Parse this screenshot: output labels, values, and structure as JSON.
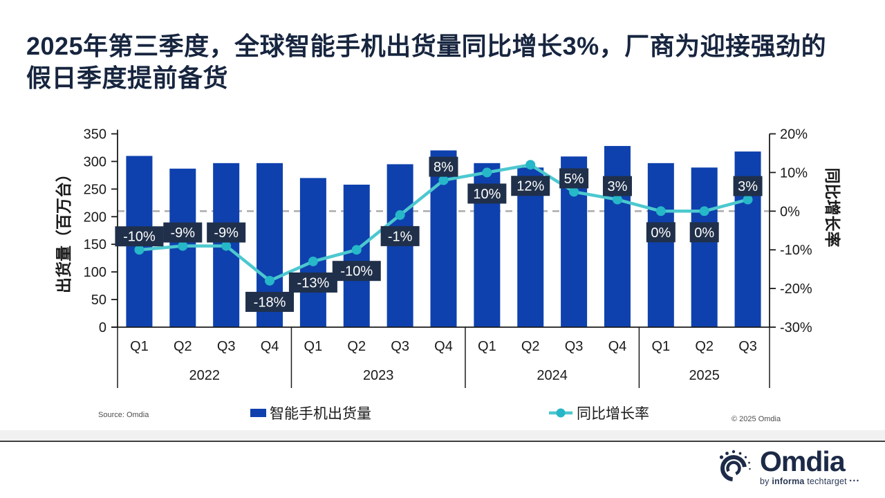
{
  "title": {
    "line1": "2025年第三季度，全球智能手机出货量同比增长3%，厂商为迎接强劲的",
    "line2": "假日季度提前备货"
  },
  "colors": {
    "bar": "#0e41ae",
    "line": "#4cc8cf",
    "marker": "#26b7c8",
    "label_box": "#20304a",
    "label_text": "#ffffff",
    "axis_text": "#1a1a1a",
    "axis_line": "#1a1a1a",
    "dashed_zero": "#ababab",
    "title_navy": "#17253f"
  },
  "chart_data": {
    "type": "bar+line",
    "categories": [
      "Q1",
      "Q2",
      "Q3",
      "Q4",
      "Q1",
      "Q2",
      "Q3",
      "Q4",
      "Q1",
      "Q2",
      "Q3",
      "Q4",
      "Q1",
      "Q2",
      "Q3"
    ],
    "groups": [
      {
        "year": "2022",
        "count": 4
      },
      {
        "year": "2023",
        "count": 4
      },
      {
        "year": "2024",
        "count": 4
      },
      {
        "year": "2025",
        "count": 3
      }
    ],
    "series": [
      {
        "name": "智能手机出货量",
        "type": "bar",
        "axis": "left",
        "values": [
          310,
          287,
          297,
          297,
          270,
          258,
          295,
          320,
          297,
          289,
          309,
          328,
          297,
          289,
          318
        ]
      },
      {
        "name": "同比增长率",
        "type": "line",
        "axis": "right",
        "values_pct": [
          -10,
          -9,
          -9,
          -18,
          -13,
          -10,
          -1,
          8,
          10,
          12,
          5,
          3,
          0,
          0,
          3
        ],
        "labels": [
          "-10%",
          "-9%",
          "-9%",
          "-18%",
          "-13%",
          "-10%",
          "-1%",
          "8%",
          "10%",
          "12%",
          "5%",
          "3%",
          "0%",
          "0%",
          "3%"
        ],
        "label_side": [
          "above",
          "above",
          "above",
          "below",
          "below",
          "below",
          "below",
          "above",
          "below",
          "below",
          "above",
          "above",
          "below",
          "below",
          "above"
        ]
      }
    ],
    "left_axis": {
      "title": "出货量（百万台）",
      "ticks": [
        0,
        50,
        100,
        150,
        200,
        250,
        300,
        350
      ],
      "range": [
        0,
        350
      ]
    },
    "right_axis": {
      "title": "同比增长率",
      "ticks": [
        "20%",
        "10%",
        "0%",
        "-10%",
        "-20%",
        "-30%"
      ],
      "tick_values": [
        20,
        10,
        0,
        -10,
        -20,
        -30
      ],
      "range": [
        -30,
        20
      ]
    },
    "zero_line": true,
    "grid": false,
    "legend_position": "bottom"
  },
  "legend": {
    "items": [
      {
        "label": "智能手机出货量"
      },
      {
        "label": "同比增长率"
      }
    ]
  },
  "footer": {
    "source": "Source: Omdia",
    "copyright": "© 2025 Omdia",
    "logo": {
      "name": "Omdia",
      "byline_by": "by",
      "byline_brand": "informa",
      "byline_suffix": "techtarget",
      "byline_dots": "•••"
    }
  }
}
